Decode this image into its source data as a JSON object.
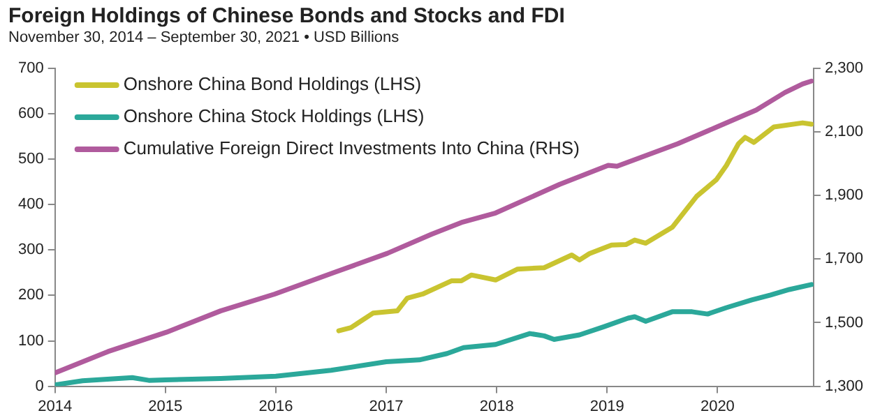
{
  "chart_data": {
    "type": "line",
    "title": "Foreign Holdings of Chinese Bonds and Stocks and FDI",
    "subtitle": "November 30, 2014 – September 30, 2021 • USD Billions",
    "xlim": [
      2014,
      2020.87
    ],
    "xticks": [
      2014,
      2015,
      2016,
      2017,
      2018,
      2019,
      2020
    ],
    "ylim": [
      0,
      700
    ],
    "yticks": [
      0,
      100,
      200,
      300,
      400,
      500,
      600,
      700
    ],
    "y2lim": [
      1300,
      2300
    ],
    "y2ticks": [
      {
        "value": 1300,
        "label": "1,300"
      },
      {
        "value": 1500,
        "label": "1,500"
      },
      {
        "value": 1700,
        "label": "1,700"
      },
      {
        "value": 1900,
        "label": "1,900"
      },
      {
        "value": 2100,
        "label": "2,100"
      },
      {
        "value": 2300,
        "label": "2,300"
      }
    ],
    "grid": false,
    "legend": "top left",
    "marker": "none",
    "line_style": "solid",
    "series": [
      {
        "name": "Onshore China Bond Holdings (LHS)",
        "color": "#c9c430",
        "x": [
          2016.57,
          2016.68,
          2016.88,
          2017.1,
          2017.19,
          2017.33,
          2017.59,
          2017.68,
          2017.77,
          2017.99,
          2018.19,
          2018.43,
          2018.68,
          2018.75,
          2018.84,
          2019.04,
          2019.17,
          2019.25,
          2019.35,
          2019.59,
          2019.81,
          2019.99,
          2020.08,
          2020.19,
          2020.25,
          2020.33,
          2020.51,
          2020.77,
          2020.85
        ],
        "values": [
          122,
          129,
          161,
          166,
          194,
          203,
          232,
          232,
          245,
          234,
          258,
          261,
          289,
          278,
          292,
          311,
          312,
          322,
          315,
          350,
          418,
          455,
          486,
          534,
          548,
          537,
          571,
          580,
          577
        ]
      },
      {
        "name": "Onshore China Stock Holdings (LHS)",
        "color": "#2ba89a",
        "x": [
          2014,
          2014.25,
          2014.7,
          2014.85,
          2015,
          2015.5,
          2016,
          2016.5,
          2017,
          2017.3,
          2017.55,
          2017.7,
          2017.99,
          2018.3,
          2018.43,
          2018.52,
          2018.75,
          2018.97,
          2019.19,
          2019.25,
          2019.35,
          2019.59,
          2019.77,
          2019.91,
          2020.08,
          2020.31,
          2020.48,
          2020.65,
          2020.85
        ],
        "values": [
          3,
          12,
          19,
          13,
          14,
          17,
          22,
          35,
          54,
          58,
          72,
          85,
          92,
          116,
          111,
          103,
          113,
          131,
          150,
          153,
          143,
          164,
          164,
          159,
          173,
          190,
          201,
          213,
          224
        ]
      },
      {
        "name": "Cumulative Foreign Direct Investments Into China (RHS)",
        "color": "#b05b9d",
        "axis": "y2",
        "x": [
          2014,
          2014.48,
          2015.01,
          2015.5,
          2015.99,
          2016.52,
          2017.01,
          2017.41,
          2017.68,
          2017.99,
          2018.57,
          2019.01,
          2019.09,
          2019.64,
          2019.99,
          2020.35,
          2020.61,
          2020.77,
          2020.85
        ],
        "values": [
          1342,
          1409,
          1470,
          1537,
          1590,
          1657,
          1718,
          1778,
          1815,
          1845,
          1935,
          1995,
          1992,
          2063,
          2115,
          2169,
          2224,
          2251,
          2260
        ]
      }
    ]
  }
}
